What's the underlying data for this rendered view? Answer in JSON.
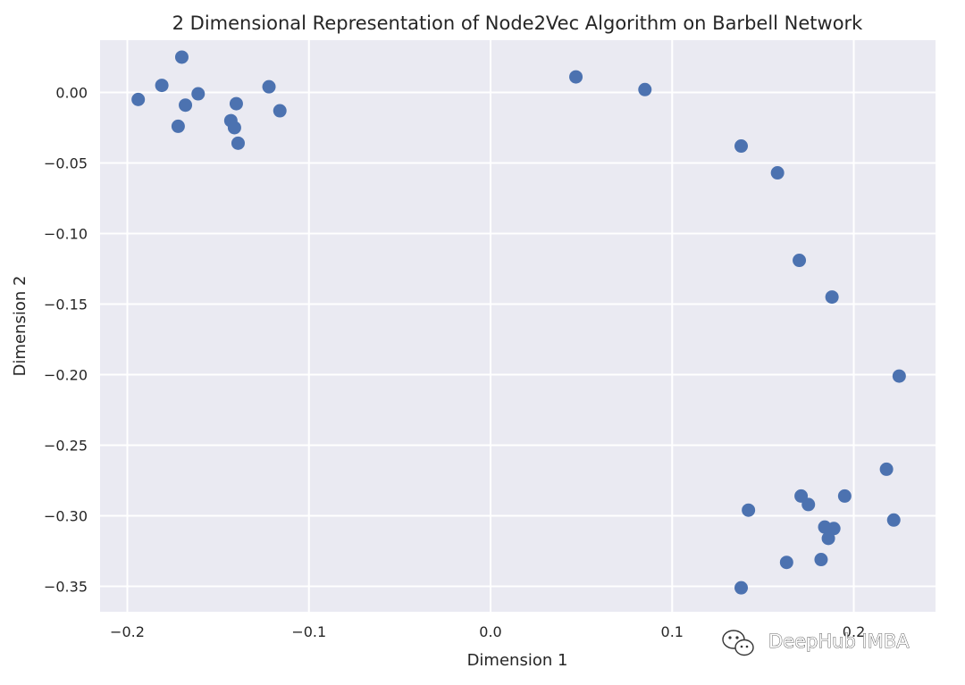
{
  "chart_data": {
    "type": "scatter",
    "title": "2 Dimensional Representation of Node2Vec Algorithm on Barbell Network",
    "xlabel": "Dimension 1",
    "ylabel": "Dimension 2",
    "xlim": [
      -0.215,
      0.245
    ],
    "ylim": [
      -0.368,
      0.037
    ],
    "xticks": [
      -0.2,
      -0.1,
      0.0,
      0.1,
      0.2
    ],
    "xtick_labels": [
      "−0.2",
      "−0.1",
      "0.0",
      "0.1",
      "0.2"
    ],
    "yticks": [
      0.0,
      -0.05,
      -0.1,
      -0.15,
      -0.2,
      -0.25,
      -0.3,
      -0.35
    ],
    "ytick_labels": [
      "0.00",
      "−0.05",
      "−0.10",
      "−0.15",
      "−0.20",
      "−0.25",
      "−0.30",
      "−0.35"
    ],
    "grid": true,
    "marker_color": "#4c72b0",
    "plot_background": "#eaeaf2",
    "grid_color": "#ffffff",
    "points": [
      {
        "x": -0.17,
        "y": 0.025
      },
      {
        "x": -0.181,
        "y": 0.005
      },
      {
        "x": -0.194,
        "y": -0.005
      },
      {
        "x": -0.168,
        "y": -0.009
      },
      {
        "x": -0.161,
        "y": -0.001
      },
      {
        "x": -0.172,
        "y": -0.024
      },
      {
        "x": -0.122,
        "y": 0.004
      },
      {
        "x": -0.14,
        "y": -0.008
      },
      {
        "x": -0.116,
        "y": -0.013
      },
      {
        "x": -0.143,
        "y": -0.02
      },
      {
        "x": -0.141,
        "y": -0.025
      },
      {
        "x": -0.139,
        "y": -0.036
      },
      {
        "x": 0.047,
        "y": 0.011
      },
      {
        "x": 0.085,
        "y": 0.002
      },
      {
        "x": 0.138,
        "y": -0.038
      },
      {
        "x": 0.158,
        "y": -0.057
      },
      {
        "x": 0.17,
        "y": -0.119
      },
      {
        "x": 0.188,
        "y": -0.145
      },
      {
        "x": 0.225,
        "y": -0.201
      },
      {
        "x": 0.218,
        "y": -0.267
      },
      {
        "x": 0.195,
        "y": -0.286
      },
      {
        "x": 0.171,
        "y": -0.286
      },
      {
        "x": 0.175,
        "y": -0.292
      },
      {
        "x": 0.142,
        "y": -0.296
      },
      {
        "x": 0.222,
        "y": -0.303
      },
      {
        "x": 0.184,
        "y": -0.308
      },
      {
        "x": 0.189,
        "y": -0.309
      },
      {
        "x": 0.186,
        "y": -0.316
      },
      {
        "x": 0.182,
        "y": -0.331
      },
      {
        "x": 0.163,
        "y": -0.333
      },
      {
        "x": 0.138,
        "y": -0.351
      }
    ]
  },
  "watermark": {
    "text": "DeepHub IMBA",
    "icon": "wechat-icon"
  }
}
